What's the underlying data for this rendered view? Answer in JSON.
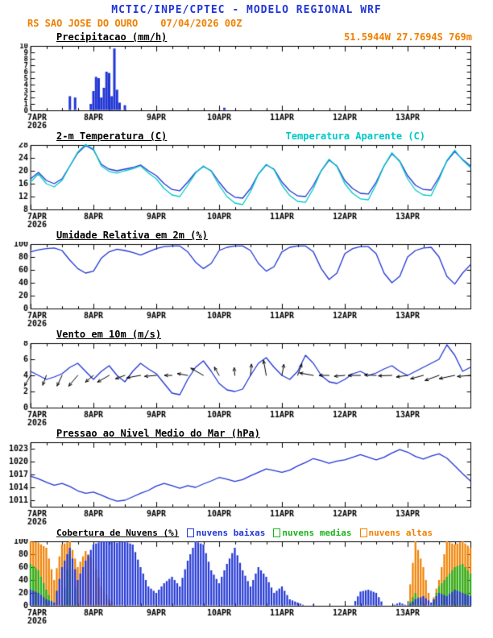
{
  "header": {
    "title": "MCTIC/INPE/CPTEC - MODELO REGIONAL WRF",
    "station": "RS SAO JOSE DO OURO",
    "run": "07/04/2026 00Z",
    "location": "51.5944W 27.7694S 769m"
  },
  "colors": {
    "blue": "#2136d4",
    "cyan": "#00c8c8",
    "orange": "#f08000",
    "green": "#1db31d",
    "black": "#000000"
  },
  "x_axis": {
    "range_hours": [
      0,
      168
    ],
    "major_step": 24,
    "minor_step": 6,
    "tick_labels": [
      "7APR",
      "8APR",
      "9APR",
      "10APR",
      "11APR",
      "12APR",
      "13APR"
    ],
    "year_label": "2026"
  },
  "chart_data": [
    {
      "id": "precip",
      "type": "bar",
      "title": "Precipitacao (mm/h)",
      "ylabel": "mm/h",
      "ylim": [
        0,
        10
      ],
      "yticks": [
        0,
        1,
        2,
        3,
        4,
        5,
        6,
        7,
        8,
        9,
        10
      ],
      "bars": [
        {
          "h": 15,
          "v": 2.2
        },
        {
          "h": 17,
          "v": 2.0
        },
        {
          "h": 23,
          "v": 1.0
        },
        {
          "h": 24,
          "v": 3.0
        },
        {
          "h": 25,
          "v": 5.2
        },
        {
          "h": 26,
          "v": 5.0
        },
        {
          "h": 27,
          "v": 2.0
        },
        {
          "h": 28,
          "v": 3.5
        },
        {
          "h": 29,
          "v": 6.0
        },
        {
          "h": 30,
          "v": 5.8
        },
        {
          "h": 31,
          "v": 2.2
        },
        {
          "h": 32,
          "v": 9.6
        },
        {
          "h": 33,
          "v": 3.2
        },
        {
          "h": 34,
          "v": 1.2
        },
        {
          "h": 36,
          "v": 0.8
        },
        {
          "h": 74,
          "v": 0.4
        }
      ]
    },
    {
      "id": "temp2m",
      "type": "line",
      "title": "2-m Temperatura (C)",
      "legend_right": "Temperatura Aparente (C)",
      "ylim": [
        8,
        28
      ],
      "yticks": [
        8,
        12,
        16,
        20,
        24,
        28
      ],
      "step_hours": 3,
      "series": [
        {
          "name": "2-m Temperatura (C)",
          "color_key": "blue",
          "values": [
            17.5,
            19.5,
            17.0,
            16.0,
            17.5,
            21.5,
            25.5,
            27.8,
            26.5,
            22.0,
            20.5,
            20.0,
            20.5,
            21.0,
            21.8,
            20.0,
            18.5,
            16.0,
            14.2,
            13.8,
            16.5,
            19.5,
            21.3,
            20.0,
            16.5,
            13.5,
            11.8,
            11.5,
            14.5,
            19.0,
            21.8,
            20.5,
            16.5,
            13.8,
            12.2,
            12.0,
            15.5,
            20.0,
            23.3,
            21.5,
            17.0,
            14.5,
            13.0,
            12.8,
            16.5,
            21.5,
            25.3,
            23.0,
            18.5,
            15.5,
            14.2,
            14.0,
            18.0,
            23.0,
            26.0,
            23.5,
            21.5
          ]
        },
        {
          "name": "Temperatura Aparente (C)",
          "color_key": "cyan",
          "values": [
            16.5,
            19.0,
            16.0,
            15.0,
            17.0,
            21.5,
            25.8,
            28.2,
            26.8,
            21.5,
            19.8,
            19.3,
            20.0,
            20.6,
            21.5,
            19.3,
            17.5,
            14.5,
            12.5,
            12.0,
            15.5,
            19.3,
            21.5,
            19.8,
            15.5,
            12.0,
            10.0,
            9.5,
            13.5,
            19.0,
            22.0,
            20.3,
            15.5,
            12.3,
            10.5,
            10.2,
            14.5,
            20.0,
            23.6,
            21.3,
            16.0,
            13.0,
            11.3,
            11.0,
            15.8,
            21.5,
            25.6,
            22.8,
            17.5,
            14.0,
            12.5,
            12.3,
            17.3,
            23.2,
            26.4,
            23.3,
            21.0
          ]
        }
      ]
    },
    {
      "id": "rh2m",
      "type": "line",
      "title": "Umidade Relativa em 2m (%)",
      "ylim": [
        0,
        100
      ],
      "yticks": [
        0,
        20,
        40,
        60,
        80,
        100
      ],
      "step_hours": 3,
      "series": [
        {
          "name": "Umidade Relativa em 2m (%)",
          "color_key": "blue",
          "values": [
            88,
            91,
            93,
            94,
            90,
            75,
            62,
            55,
            58,
            78,
            88,
            92,
            90,
            87,
            83,
            88,
            93,
            96,
            97,
            97,
            88,
            72,
            62,
            70,
            90,
            95,
            97,
            97,
            90,
            70,
            58,
            65,
            88,
            95,
            97,
            97,
            88,
            62,
            45,
            55,
            85,
            93,
            96,
            96,
            85,
            55,
            40,
            50,
            80,
            90,
            94,
            95,
            80,
            50,
            38,
            55,
            68
          ]
        }
      ]
    },
    {
      "id": "wind10m",
      "type": "line",
      "title": "Vento em 10m (m/s)",
      "ylim": [
        0,
        8
      ],
      "yticks": [
        0,
        2,
        4,
        6,
        8
      ],
      "step_hours": 3,
      "series": [
        {
          "name": "Vento em 10m (m/s)",
          "color_key": "blue",
          "values": [
            4.5,
            4.0,
            3.5,
            3.8,
            4.2,
            5.0,
            5.5,
            4.5,
            3.5,
            4.5,
            5.2,
            4.0,
            3.2,
            4.5,
            5.5,
            4.8,
            4.2,
            3.0,
            1.8,
            1.6,
            3.5,
            5.0,
            5.8,
            4.5,
            3.0,
            2.2,
            2.0,
            2.3,
            4.0,
            5.5,
            6.2,
            5.0,
            4.0,
            3.5,
            4.5,
            6.5,
            5.5,
            4.0,
            3.2,
            3.0,
            3.5,
            4.2,
            4.5,
            4.0,
            4.3,
            4.8,
            5.2,
            4.5,
            4.0,
            4.5,
            5.0,
            5.5,
            6.0,
            7.8,
            6.5,
            4.5,
            5.0
          ]
        }
      ],
      "arrows": {
        "baseline": 4,
        "step_hours": 6,
        "dirs_deg": [
          240,
          250,
          245,
          230,
          220,
          210,
          200,
          190,
          185,
          180,
          170,
          150,
          120,
          95,
          85,
          100,
          80,
          70,
          170,
          180,
          185,
          180,
          178,
          182,
          188,
          195,
          200,
          192,
          185
        ]
      }
    },
    {
      "id": "slp",
      "type": "line",
      "title": "Pressao ao Nivel Medio do Mar (hPa)",
      "ylim": [
        1009.5,
        1024.5
      ],
      "yticks": [
        1011,
        1014,
        1017,
        1020,
        1023
      ],
      "step_hours": 3,
      "series": [
        {
          "name": "Pressao ao Nivel Medio do Mar (hPa)",
          "color_key": "blue",
          "values": [
            1016.6,
            1016.0,
            1015.2,
            1014.5,
            1014.9,
            1014.2,
            1013.2,
            1012.6,
            1012.9,
            1012.2,
            1011.4,
            1010.8,
            1011.0,
            1011.8,
            1012.6,
            1013.3,
            1014.3,
            1014.9,
            1014.4,
            1013.8,
            1014.4,
            1014.0,
            1014.8,
            1015.5,
            1016.3,
            1015.9,
            1015.4,
            1015.8,
            1016.7,
            1017.5,
            1018.3,
            1017.9,
            1017.5,
            1018.0,
            1019.0,
            1019.8,
            1020.7,
            1020.2,
            1019.6,
            1020.1,
            1020.4,
            1021.0,
            1021.6,
            1021.0,
            1020.4,
            1021.0,
            1022.0,
            1022.8,
            1022.2,
            1021.2,
            1020.6,
            1021.3,
            1021.8,
            1020.8,
            1019.0,
            1017.2,
            1015.5
          ]
        }
      ]
    },
    {
      "id": "clouds",
      "type": "bar_dense",
      "title": "Cobertura de Nuvens (%)",
      "ylim": [
        0,
        100
      ],
      "yticks": [
        0,
        20,
        40,
        60,
        80,
        100
      ],
      "step_hours": 3,
      "legend": [
        {
          "label": "nuvens baixas",
          "color_key": "blue"
        },
        {
          "label": "nuvens medias",
          "color_key": "green"
        },
        {
          "label": "nuvens altas",
          "color_key": "orange"
        }
      ],
      "series": [
        {
          "name": "nuvens altas",
          "color_key": "orange",
          "values": [
            100,
            98,
            90,
            40,
            95,
            100,
            60,
            85,
            70,
            30,
            10,
            0,
            0,
            0,
            0,
            0,
            0,
            0,
            0,
            0,
            0,
            0,
            0,
            0,
            0,
            0,
            0,
            0,
            0,
            0,
            0,
            0,
            0,
            0,
            0,
            0,
            0,
            0,
            0,
            0,
            0,
            0,
            0,
            0,
            0,
            0,
            0,
            0,
            0,
            100,
            60,
            0,
            40,
            100,
            95,
            100,
            90
          ]
        },
        {
          "name": "nuvens medias",
          "color_key": "green",
          "values": [
            65,
            55,
            25,
            0,
            0,
            85,
            0,
            0,
            0,
            0,
            0,
            0,
            0,
            0,
            0,
            0,
            0,
            0,
            0,
            0,
            0,
            0,
            0,
            0,
            0,
            0,
            0,
            0,
            0,
            0,
            0,
            0,
            0,
            0,
            0,
            0,
            0,
            0,
            0,
            0,
            0,
            0,
            0,
            0,
            0,
            0,
            0,
            0,
            0,
            20,
            0,
            0,
            30,
            45,
            60,
            65,
            50
          ]
        },
        {
          "name": "nuvens baixas",
          "color_key": "blue",
          "values": [
            25,
            20,
            10,
            5,
            60,
            90,
            40,
            70,
            95,
            100,
            100,
            98,
            100,
            95,
            60,
            30,
            20,
            35,
            45,
            30,
            70,
            100,
            95,
            55,
            35,
            65,
            90,
            55,
            30,
            60,
            45,
            20,
            30,
            10,
            5,
            0,
            2,
            0,
            0,
            0,
            0,
            0,
            22,
            25,
            20,
            0,
            0,
            5,
            0,
            10,
            15,
            5,
            20,
            15,
            25,
            20,
            15
          ]
        }
      ]
    }
  ]
}
